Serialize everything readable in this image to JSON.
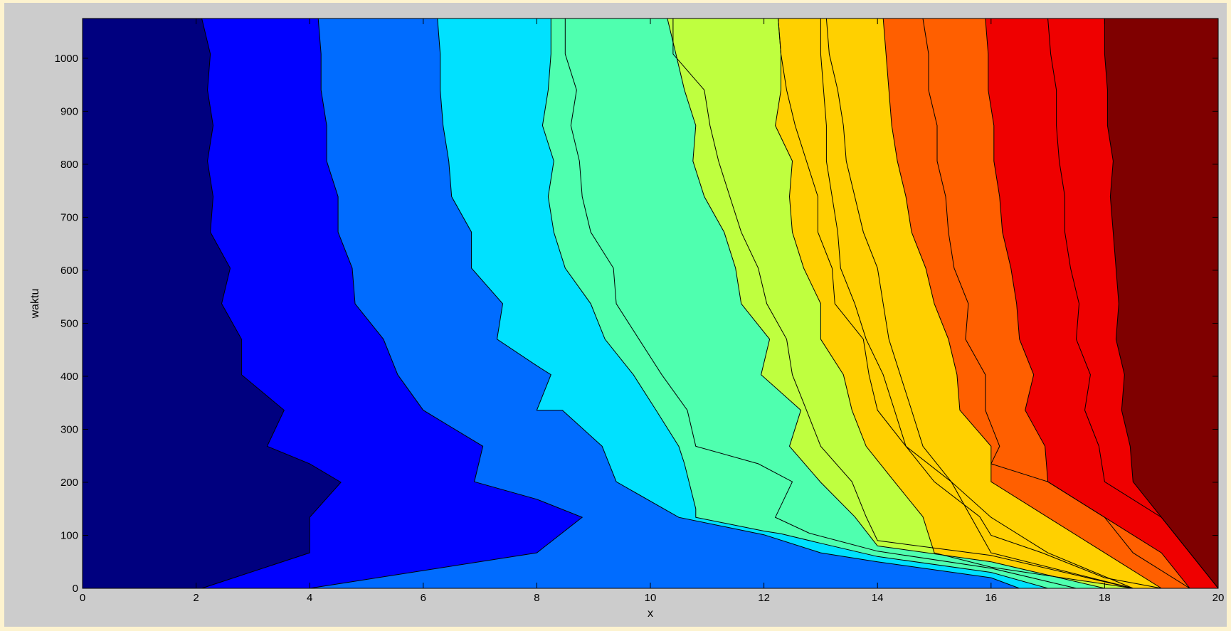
{
  "chart_data": {
    "type": "contour",
    "title": "",
    "xlabel": "x",
    "ylabel": "waktu",
    "xlim": [
      0,
      20
    ],
    "ylim": [
      0,
      1075
    ],
    "xticks": [
      0,
      2,
      4,
      6,
      8,
      10,
      12,
      14,
      16,
      18,
      20
    ],
    "yticks": [
      0,
      100,
      200,
      300,
      400,
      500,
      600,
      700,
      800,
      900,
      1000
    ],
    "grid": false,
    "legend": "none",
    "bands": [
      {
        "color": "#00007f"
      },
      {
        "color": "#0000ff"
      },
      {
        "color": "#006cff"
      },
      {
        "color": "#00e1ff"
      },
      {
        "color": "#4fffaf"
      },
      {
        "color": "#bfff3f"
      },
      {
        "color": "#ffd000"
      },
      {
        "color": "#ff5f00"
      },
      {
        "color": "#ef0000"
      },
      {
        "color": "#7f0000"
      }
    ],
    "contour_lines": [
      {
        "points": [
          [
            2.1,
            0
          ],
          [
            4.0,
            67
          ],
          [
            4.0,
            134
          ],
          [
            4.55,
            200
          ],
          [
            4.0,
            235
          ],
          [
            3.25,
            268
          ],
          [
            3.55,
            336
          ],
          [
            2.8,
            403
          ],
          [
            2.8,
            470
          ],
          [
            2.45,
            537
          ],
          [
            2.6,
            604
          ],
          [
            2.25,
            672
          ],
          [
            2.3,
            739
          ],
          [
            2.2,
            806
          ],
          [
            2.3,
            873
          ],
          [
            2.2,
            940
          ],
          [
            2.25,
            1008
          ],
          [
            2.1,
            1075
          ]
        ]
      },
      {
        "points": [
          [
            4.0,
            0
          ],
          [
            8.0,
            67
          ],
          [
            8.8,
            134
          ],
          [
            8.0,
            168
          ],
          [
            6.9,
            201
          ],
          [
            7.05,
            268
          ],
          [
            6.0,
            336
          ],
          [
            5.55,
            403
          ],
          [
            5.3,
            470
          ],
          [
            4.8,
            537
          ],
          [
            4.75,
            604
          ],
          [
            4.5,
            672
          ],
          [
            4.5,
            739
          ],
          [
            4.3,
            806
          ],
          [
            4.3,
            873
          ],
          [
            4.2,
            940
          ],
          [
            4.2,
            1008
          ],
          [
            4.15,
            1075
          ]
        ]
      },
      {
        "points": [
          [
            16.5,
            0
          ],
          [
            16.0,
            20
          ],
          [
            14.0,
            50
          ],
          [
            13.0,
            67
          ],
          [
            12.0,
            101
          ],
          [
            10.5,
            134
          ],
          [
            9.4,
            201
          ],
          [
            9.15,
            268
          ],
          [
            8.45,
            336
          ],
          [
            8.0,
            336
          ],
          [
            8.25,
            403
          ],
          [
            8.0,
            420
          ],
          [
            7.3,
            470
          ],
          [
            7.4,
            537
          ],
          [
            6.85,
            604
          ],
          [
            6.85,
            672
          ],
          [
            6.5,
            739
          ],
          [
            6.45,
            806
          ],
          [
            6.35,
            873
          ],
          [
            6.3,
            940
          ],
          [
            6.3,
            1008
          ],
          [
            6.25,
            1075
          ]
        ]
      },
      {
        "points": [
          [
            17.0,
            0
          ],
          [
            16.0,
            30
          ],
          [
            14.0,
            60
          ],
          [
            13.0,
            85
          ],
          [
            12.3,
            103
          ],
          [
            12.0,
            108
          ],
          [
            10.8,
            134
          ],
          [
            10.8,
            150
          ],
          [
            10.6,
            235
          ],
          [
            10.5,
            268
          ],
          [
            10.1,
            336
          ],
          [
            9.7,
            403
          ],
          [
            9.2,
            470
          ],
          [
            8.95,
            537
          ],
          [
            8.5,
            604
          ],
          [
            8.3,
            672
          ],
          [
            8.2,
            739
          ],
          [
            8.3,
            806
          ],
          [
            8.1,
            873
          ],
          [
            8.2,
            940
          ],
          [
            8.25,
            1008
          ],
          [
            8.25,
            1075
          ]
        ]
      },
      {
        "points": [
          [
            17.5,
            0
          ],
          [
            16.0,
            38
          ],
          [
            14.0,
            70
          ],
          [
            12.8,
            104
          ],
          [
            12.2,
            134
          ],
          [
            12.5,
            201
          ],
          [
            11.9,
            235
          ],
          [
            10.8,
            268
          ],
          [
            10.65,
            336
          ],
          [
            10.2,
            403
          ],
          [
            9.8,
            470
          ],
          [
            9.4,
            537
          ],
          [
            9.35,
            604
          ],
          [
            8.95,
            672
          ],
          [
            8.8,
            739
          ],
          [
            8.75,
            806
          ],
          [
            8.6,
            873
          ],
          [
            8.7,
            940
          ],
          [
            8.5,
            1008
          ],
          [
            8.5,
            1075
          ]
        ]
      },
      {
        "points": [
          [
            18.0,
            0
          ],
          [
            16.0,
            50
          ],
          [
            14.0,
            80
          ],
          [
            13.6,
            135
          ],
          [
            13.0,
            200
          ],
          [
            12.45,
            268
          ],
          [
            12.65,
            336
          ],
          [
            11.95,
            403
          ],
          [
            12.1,
            470
          ],
          [
            11.6,
            537
          ],
          [
            11.5,
            604
          ],
          [
            11.3,
            672
          ],
          [
            10.95,
            739
          ],
          [
            10.75,
            806
          ],
          [
            10.8,
            873
          ],
          [
            10.6,
            940
          ],
          [
            10.45,
            1008
          ],
          [
            10.3,
            1075
          ]
        ]
      },
      {
        "points": [
          [
            18.5,
            0
          ],
          [
            16.0,
            62
          ],
          [
            14.0,
            90
          ],
          [
            13.8,
            135
          ],
          [
            13.55,
            201
          ],
          [
            13.0,
            268
          ],
          [
            12.75,
            336
          ],
          [
            12.5,
            403
          ],
          [
            12.4,
            470
          ],
          [
            12.05,
            537
          ],
          [
            11.9,
            604
          ],
          [
            11.6,
            672
          ],
          [
            11.4,
            739
          ],
          [
            11.2,
            806
          ],
          [
            11.05,
            873
          ],
          [
            10.95,
            940
          ],
          [
            10.4,
            1008
          ],
          [
            10.4,
            1075
          ]
        ]
      },
      {
        "points": [
          [
            18.5,
            0
          ],
          [
            16.0,
            40
          ],
          [
            15.0,
            67
          ],
          [
            14.8,
            135
          ],
          [
            14.3,
            201
          ],
          [
            13.8,
            268
          ],
          [
            13.55,
            336
          ],
          [
            13.4,
            403
          ],
          [
            13.0,
            470
          ],
          [
            13.0,
            537
          ],
          [
            12.7,
            604
          ],
          [
            12.5,
            672
          ],
          [
            12.45,
            739
          ],
          [
            12.5,
            806
          ],
          [
            12.2,
            873
          ],
          [
            12.3,
            940
          ],
          [
            12.3,
            1008
          ],
          [
            12.25,
            1075
          ]
        ]
      },
      {
        "points": [
          [
            19.0,
            0
          ],
          [
            18.0,
            20
          ],
          [
            16.9,
            67
          ],
          [
            16.0,
            100
          ],
          [
            15.8,
            135
          ],
          [
            15.0,
            201
          ],
          [
            14.5,
            268
          ],
          [
            14.0,
            336
          ],
          [
            13.85,
            403
          ],
          [
            13.75,
            470
          ],
          [
            13.25,
            537
          ],
          [
            13.2,
            604
          ],
          [
            12.95,
            672
          ],
          [
            12.95,
            739
          ],
          [
            12.75,
            806
          ],
          [
            12.55,
            873
          ],
          [
            12.4,
            940
          ],
          [
            12.3,
            1008
          ],
          [
            12.25,
            1075
          ]
        ]
      },
      {
        "points": [
          [
            18.5,
            0
          ],
          [
            16.0,
            67
          ],
          [
            15.3,
            201
          ],
          [
            14.5,
            268
          ],
          [
            14.3,
            336
          ],
          [
            14.1,
            403
          ],
          [
            13.8,
            470
          ],
          [
            13.6,
            537
          ],
          [
            13.35,
            604
          ],
          [
            13.3,
            672
          ],
          [
            13.2,
            739
          ],
          [
            13.1,
            806
          ],
          [
            13.1,
            873
          ],
          [
            13.05,
            940
          ],
          [
            13.0,
            1008
          ],
          [
            13.0,
            1075
          ]
        ]
      },
      {
        "points": [
          [
            18.5,
            0
          ],
          [
            17.0,
            67
          ],
          [
            16.0,
            134
          ],
          [
            15.3,
            201
          ],
          [
            14.8,
            268
          ],
          [
            14.6,
            336
          ],
          [
            14.4,
            403
          ],
          [
            14.2,
            470
          ],
          [
            14.1,
            537
          ],
          [
            14.0,
            604
          ],
          [
            13.75,
            672
          ],
          [
            13.6,
            739
          ],
          [
            13.45,
            806
          ],
          [
            13.4,
            873
          ],
          [
            13.3,
            940
          ],
          [
            13.15,
            1008
          ],
          [
            13.1,
            1075
          ]
        ]
      },
      {
        "points": [
          [
            19.0,
            0
          ],
          [
            18.0,
            67
          ],
          [
            17.0,
            134
          ],
          [
            16.0,
            201
          ],
          [
            16.0,
            268
          ],
          [
            15.45,
            336
          ],
          [
            15.4,
            403
          ],
          [
            15.25,
            470
          ],
          [
            15.0,
            537
          ],
          [
            14.85,
            604
          ],
          [
            14.6,
            672
          ],
          [
            14.5,
            739
          ],
          [
            14.35,
            806
          ],
          [
            14.25,
            873
          ],
          [
            14.2,
            940
          ],
          [
            14.15,
            1008
          ],
          [
            14.1,
            1075
          ]
        ]
      },
      {
        "points": [
          [
            19.5,
            0
          ],
          [
            18.5,
            67
          ],
          [
            18.0,
            134
          ],
          [
            17.0,
            201
          ],
          [
            16.0,
            235
          ],
          [
            16.15,
            268
          ],
          [
            15.9,
            336
          ],
          [
            15.9,
            403
          ],
          [
            15.55,
            470
          ],
          [
            15.6,
            537
          ],
          [
            15.35,
            604
          ],
          [
            15.25,
            672
          ],
          [
            15.2,
            739
          ],
          [
            15.05,
            806
          ],
          [
            15.05,
            873
          ],
          [
            14.9,
            940
          ],
          [
            14.9,
            1008
          ],
          [
            14.8,
            1075
          ]
        ]
      },
      {
        "points": [
          [
            19.5,
            0
          ],
          [
            19.0,
            67
          ],
          [
            18.0,
            134
          ],
          [
            17.0,
            201
          ],
          [
            16.95,
            268
          ],
          [
            16.6,
            336
          ],
          [
            16.75,
            403
          ],
          [
            16.5,
            470
          ],
          [
            16.45,
            537
          ],
          [
            16.35,
            604
          ],
          [
            16.2,
            672
          ],
          [
            16.15,
            739
          ],
          [
            16.05,
            806
          ],
          [
            16.05,
            873
          ],
          [
            15.95,
            940
          ],
          [
            15.95,
            1008
          ],
          [
            15.9,
            1075
          ]
        ]
      },
      {
        "points": [
          [
            20.0,
            0
          ],
          [
            19.5,
            67
          ],
          [
            19.0,
            134
          ],
          [
            18.0,
            201
          ],
          [
            17.9,
            268
          ],
          [
            17.65,
            336
          ],
          [
            17.75,
            403
          ],
          [
            17.5,
            470
          ],
          [
            17.55,
            537
          ],
          [
            17.4,
            604
          ],
          [
            17.3,
            672
          ],
          [
            17.3,
            739
          ],
          [
            17.2,
            806
          ],
          [
            17.15,
            873
          ],
          [
            17.15,
            940
          ],
          [
            17.05,
            1008
          ],
          [
            17.0,
            1075
          ]
        ]
      },
      {
        "points": [
          [
            20.0,
            0
          ],
          [
            19.5,
            67
          ],
          [
            19.0,
            134
          ],
          [
            18.5,
            201
          ],
          [
            18.45,
            268
          ],
          [
            18.3,
            336
          ],
          [
            18.35,
            403
          ],
          [
            18.2,
            470
          ],
          [
            18.25,
            537
          ],
          [
            18.2,
            604
          ],
          [
            18.15,
            672
          ],
          [
            18.1,
            739
          ],
          [
            18.15,
            806
          ],
          [
            18.05,
            873
          ],
          [
            18.05,
            940
          ],
          [
            18.0,
            1008
          ],
          [
            18.0,
            1075
          ]
        ]
      }
    ]
  }
}
